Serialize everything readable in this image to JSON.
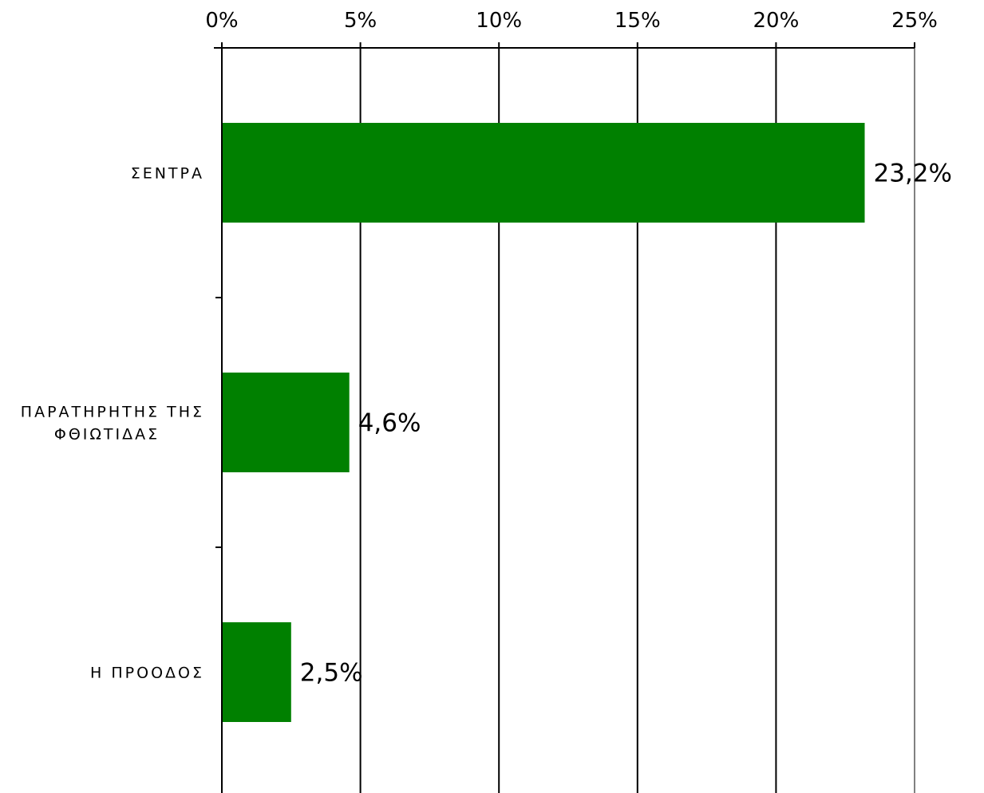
{
  "chart_data": {
    "type": "bar",
    "orientation": "horizontal",
    "categories": [
      [
        "ΣΕΝΤΡΑ"
      ],
      [
        "ΠΑΡΑΤΗΡΗΤΗΣ ΤΗΣ",
        "ΦΘΙΩΤΙΔΑΣ"
      ],
      [
        "Η ΠΡΟΟΔΟΣ"
      ]
    ],
    "values": [
      23.2,
      4.6,
      2.5
    ],
    "data_labels": [
      "23,2%",
      "4,6%",
      "2,5%"
    ],
    "x_ticks": [
      0,
      5,
      10,
      15,
      20,
      25
    ],
    "x_tick_labels": [
      "0%",
      "5%",
      "10%",
      "15%",
      "20%",
      "25%"
    ],
    "xlim": [
      0,
      25
    ],
    "x_axis_position": "top",
    "grid": true,
    "legend": "none",
    "title": "",
    "xlabel": "",
    "ylabel": "",
    "colors": {
      "bar": "#008000",
      "gridline": "#000000",
      "last_gridline": "#808080",
      "text": "#000000"
    }
  }
}
